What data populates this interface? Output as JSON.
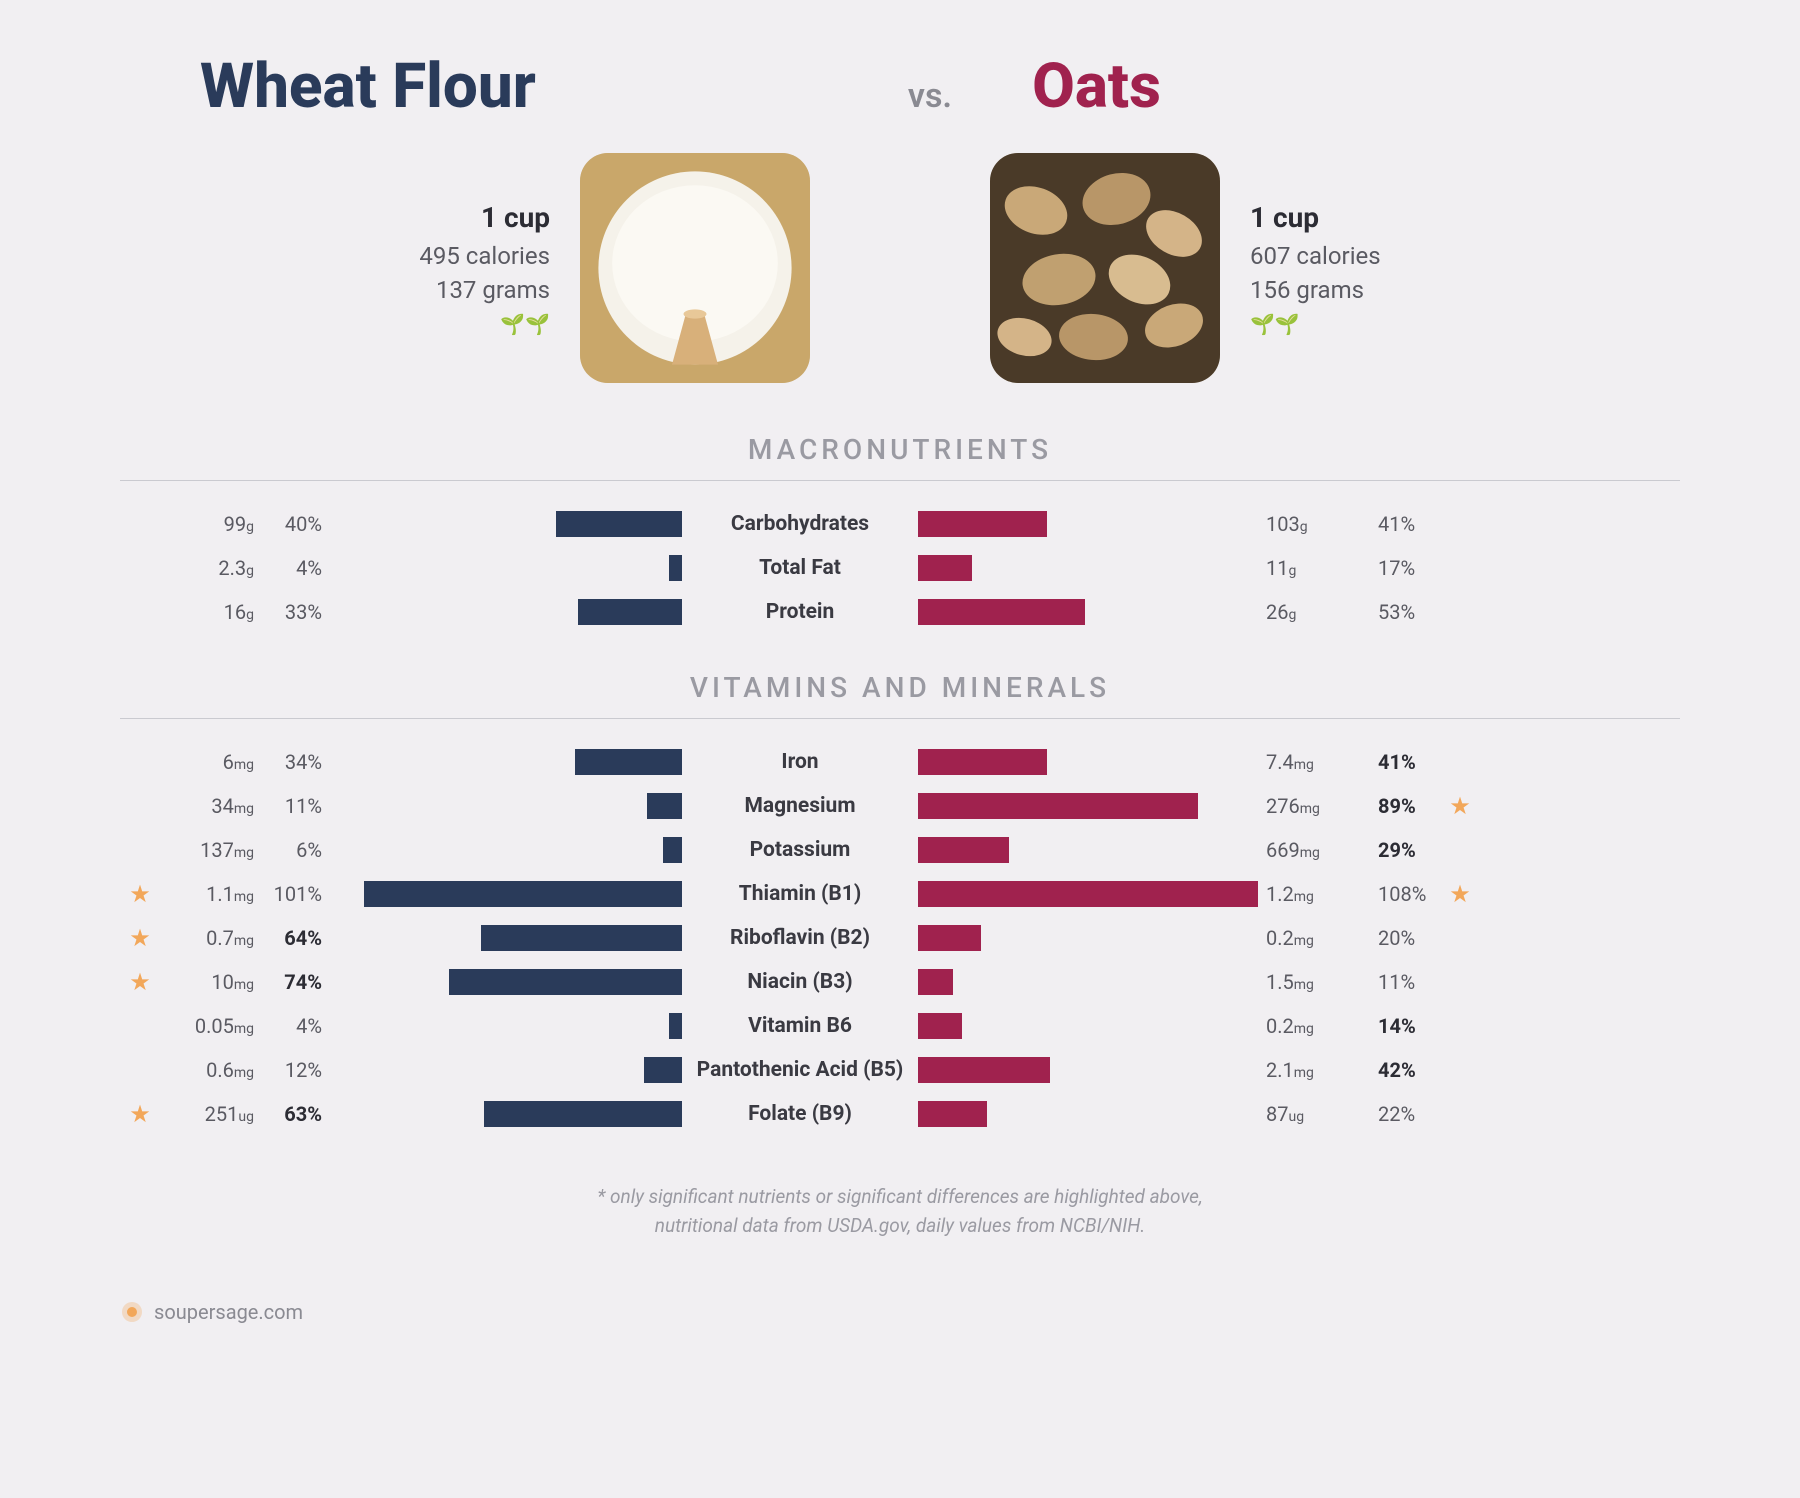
{
  "colors": {
    "left_accent": "#2a3b5a",
    "right_accent": "#a0224e",
    "muted": "#9a9aa2",
    "star": "#f2a75a",
    "bg": "#f1eff2"
  },
  "left": {
    "title": "Wheat Flour",
    "serving": "1 cup",
    "calories": "495 calories",
    "grams": "137 grams",
    "plant": "🌱🌱"
  },
  "vs": "vs.",
  "right": {
    "title": "Oats",
    "serving": "1 cup",
    "calories": "607 calories",
    "grams": "156 grams",
    "plant": "🌱🌱"
  },
  "sections": {
    "macro": "MACRONUTRIENTS",
    "vitmin": "VITAMINS AND MINERALS"
  },
  "bar_max_pct": 108,
  "macros": [
    {
      "label": "Carbohydrates",
      "l_amt": "99",
      "l_unit": "g",
      "l_pct": 40,
      "l_bold": false,
      "l_star": false,
      "r_amt": "103",
      "r_unit": "g",
      "r_pct": 41,
      "r_bold": false,
      "r_star": false
    },
    {
      "label": "Total Fat",
      "l_amt": "2.3",
      "l_unit": "g",
      "l_pct": 4,
      "l_bold": false,
      "l_star": false,
      "r_amt": "11",
      "r_unit": "g",
      "r_pct": 17,
      "r_bold": false,
      "r_star": false
    },
    {
      "label": "Protein",
      "l_amt": "16",
      "l_unit": "g",
      "l_pct": 33,
      "l_bold": false,
      "l_star": false,
      "r_amt": "26",
      "r_unit": "g",
      "r_pct": 53,
      "r_bold": false,
      "r_star": false
    }
  ],
  "vitamins": [
    {
      "label": "Iron",
      "l_amt": "6",
      "l_unit": "mg",
      "l_pct": 34,
      "l_bold": false,
      "l_star": false,
      "r_amt": "7.4",
      "r_unit": "mg",
      "r_pct": 41,
      "r_bold": true,
      "r_star": false
    },
    {
      "label": "Magnesium",
      "l_amt": "34",
      "l_unit": "mg",
      "l_pct": 11,
      "l_bold": false,
      "l_star": false,
      "r_amt": "276",
      "r_unit": "mg",
      "r_pct": 89,
      "r_bold": true,
      "r_star": true
    },
    {
      "label": "Potassium",
      "l_amt": "137",
      "l_unit": "mg",
      "l_pct": 6,
      "l_bold": false,
      "l_star": false,
      "r_amt": "669",
      "r_unit": "mg",
      "r_pct": 29,
      "r_bold": true,
      "r_star": false
    },
    {
      "label": "Thiamin (B1)",
      "l_amt": "1.1",
      "l_unit": "mg",
      "l_pct": 101,
      "l_bold": false,
      "l_star": true,
      "r_amt": "1.2",
      "r_unit": "mg",
      "r_pct": 108,
      "r_bold": false,
      "r_star": true
    },
    {
      "label": "Riboflavin (B2)",
      "l_amt": "0.7",
      "l_unit": "mg",
      "l_pct": 64,
      "l_bold": true,
      "l_star": true,
      "r_amt": "0.2",
      "r_unit": "mg",
      "r_pct": 20,
      "r_bold": false,
      "r_star": false
    },
    {
      "label": "Niacin (B3)",
      "l_amt": "10",
      "l_unit": "mg",
      "l_pct": 74,
      "l_bold": true,
      "l_star": true,
      "r_amt": "1.5",
      "r_unit": "mg",
      "r_pct": 11,
      "r_bold": false,
      "r_star": false
    },
    {
      "label": "Vitamin B6",
      "l_amt": "0.05",
      "l_unit": "mg",
      "l_pct": 4,
      "l_bold": false,
      "l_star": false,
      "r_amt": "0.2",
      "r_unit": "mg",
      "r_pct": 14,
      "r_bold": true,
      "r_star": false
    },
    {
      "label": "Pantothenic Acid (B5)",
      "l_amt": "0.6",
      "l_unit": "mg",
      "l_pct": 12,
      "l_bold": false,
      "l_star": false,
      "r_amt": "2.1",
      "r_unit": "mg",
      "r_pct": 42,
      "r_bold": true,
      "r_star": false
    },
    {
      "label": "Folate (B9)",
      "l_amt": "251",
      "l_unit": "ug",
      "l_pct": 63,
      "l_bold": true,
      "l_star": true,
      "r_amt": "87",
      "r_unit": "ug",
      "r_pct": 22,
      "r_bold": false,
      "r_star": false
    }
  ],
  "footnote_l1": "* only significant nutrients or significant differences are highlighted above,",
  "footnote_l2": "nutritional data from USDA.gov, daily values from NCBI/NIH.",
  "footer_site": "soupersage.com"
}
